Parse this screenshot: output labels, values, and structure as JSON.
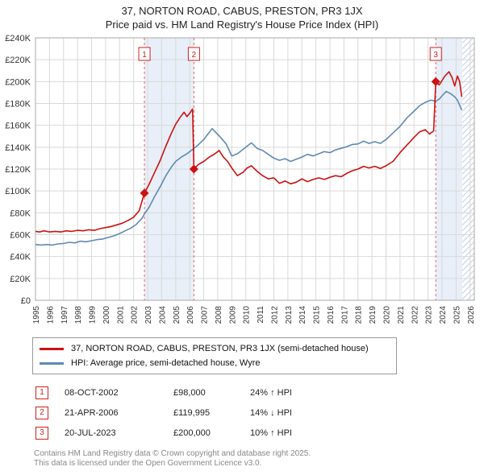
{
  "page": {
    "title": "37, NORTON ROAD, CABUS, PRESTON, PR3 1JX",
    "subtitle": "Price paid vs. HM Land Registry's House Price Index (HPI)"
  },
  "colors": {
    "property_line": "#cc1111",
    "hpi_line": "#5f8ab1",
    "sale_marker": "#cc1111",
    "dashed_line": "#e06666",
    "band_fill": "#e8eff8",
    "grid": "#d9d9d9",
    "frame": "#aaaaaa",
    "badge_red": "#cc2222"
  },
  "chart_data": {
    "type": "line",
    "title": "37, NORTON ROAD, CABUS, PRESTON, PR3 1JX — Price paid vs. HM Land Registry's House Price Index (HPI)",
    "xlabel": "",
    "ylabel": "",
    "x_axis": {
      "range": [
        1995,
        2026.3
      ],
      "ticks": [
        1995,
        1996,
        1997,
        1998,
        1999,
        2000,
        2001,
        2002,
        2003,
        2004,
        2005,
        2006,
        2007,
        2008,
        2009,
        2010,
        2011,
        2012,
        2013,
        2014,
        2015,
        2016,
        2017,
        2018,
        2019,
        2020,
        2021,
        2022,
        2023,
        2024,
        2025,
        2026
      ]
    },
    "y_axis": {
      "range": [
        0,
        240000
      ],
      "tick_step": 20000,
      "tick_labels": [
        "£0",
        "£20K",
        "£40K",
        "£60K",
        "£80K",
        "£100K",
        "£120K",
        "£140K",
        "£160K",
        "£180K",
        "£200K",
        "£220K",
        "£240K"
      ]
    },
    "bands": [
      [
        2002.77,
        2006.3
      ],
      [
        2023.55,
        2025.45
      ]
    ],
    "future_hatch": [
      2025.45,
      2026.3
    ],
    "sale_events": [
      {
        "label": "1",
        "x": 2002.77,
        "y": 98000
      },
      {
        "label": "2",
        "x": 2006.3,
        "y": 119995
      },
      {
        "label": "3",
        "x": 2023.55,
        "y": 200000
      }
    ],
    "series": [
      {
        "name": "37, NORTON ROAD, CABUS, PRESTON, PR3 1JX (semi-detached house)",
        "color": "#cc1111",
        "points": [
          [
            1995.0,
            63000
          ],
          [
            1995.3,
            62500
          ],
          [
            1995.6,
            63500
          ],
          [
            1996.0,
            62500
          ],
          [
            1996.4,
            63000
          ],
          [
            1996.8,
            62500
          ],
          [
            1997.2,
            63500
          ],
          [
            1997.6,
            63000
          ],
          [
            1998.0,
            64000
          ],
          [
            1998.4,
            63500
          ],
          [
            1998.8,
            64500
          ],
          [
            1999.2,
            64000
          ],
          [
            1999.6,
            65500
          ],
          [
            2000.0,
            66500
          ],
          [
            2000.4,
            67500
          ],
          [
            2000.8,
            69000
          ],
          [
            2001.2,
            70500
          ],
          [
            2001.6,
            73000
          ],
          [
            2002.0,
            76000
          ],
          [
            2002.4,
            82000
          ],
          [
            2002.77,
            98000
          ],
          [
            2003.1,
            106000
          ],
          [
            2003.5,
            117000
          ],
          [
            2003.9,
            128000
          ],
          [
            2004.3,
            141000
          ],
          [
            2004.7,
            153000
          ],
          [
            2005.0,
            161000
          ],
          [
            2005.3,
            167000
          ],
          [
            2005.6,
            172000
          ],
          [
            2005.8,
            168000
          ],
          [
            2006.0,
            171000
          ],
          [
            2006.2,
            175000
          ],
          [
            2006.3,
            119995
          ],
          [
            2006.6,
            124000
          ],
          [
            2007.0,
            127000
          ],
          [
            2007.4,
            131000
          ],
          [
            2007.8,
            134000
          ],
          [
            2008.1,
            137000
          ],
          [
            2008.4,
            131000
          ],
          [
            2008.7,
            127000
          ],
          [
            2009.0,
            121000
          ],
          [
            2009.4,
            114000
          ],
          [
            2009.8,
            117000
          ],
          [
            2010.1,
            121000
          ],
          [
            2010.4,
            123000
          ],
          [
            2010.8,
            118000
          ],
          [
            2011.2,
            114000
          ],
          [
            2011.6,
            111000
          ],
          [
            2012.0,
            112000
          ],
          [
            2012.4,
            107000
          ],
          [
            2012.8,
            109000
          ],
          [
            2013.2,
            106500
          ],
          [
            2013.6,
            108000
          ],
          [
            2014.0,
            111000
          ],
          [
            2014.4,
            108500
          ],
          [
            2014.8,
            110500
          ],
          [
            2015.2,
            112000
          ],
          [
            2015.6,
            110500
          ],
          [
            2016.0,
            112500
          ],
          [
            2016.4,
            114000
          ],
          [
            2016.8,
            113000
          ],
          [
            2017.2,
            116000
          ],
          [
            2017.6,
            118500
          ],
          [
            2018.0,
            120000
          ],
          [
            2018.4,
            122500
          ],
          [
            2018.8,
            121000
          ],
          [
            2019.2,
            122500
          ],
          [
            2019.6,
            120500
          ],
          [
            2020.0,
            123000
          ],
          [
            2020.5,
            127000
          ],
          [
            2021.0,
            135000
          ],
          [
            2021.5,
            142000
          ],
          [
            2022.0,
            149000
          ],
          [
            2022.4,
            154000
          ],
          [
            2022.8,
            156000
          ],
          [
            2023.1,
            152000
          ],
          [
            2023.4,
            155000
          ],
          [
            2023.55,
            200000
          ],
          [
            2023.8,
            197000
          ],
          [
            2024.0,
            201000
          ],
          [
            2024.2,
            205000
          ],
          [
            2024.5,
            209000
          ],
          [
            2024.7,
            204000
          ],
          [
            2024.9,
            196000
          ],
          [
            2025.1,
            205000
          ],
          [
            2025.25,
            200000
          ],
          [
            2025.4,
            186000
          ]
        ]
      },
      {
        "name": "HPI: Average price, semi-detached house, Wyre",
        "color": "#5f8ab1",
        "points": [
          [
            1995.0,
            51000
          ],
          [
            1995.4,
            50500
          ],
          [
            1995.8,
            51000
          ],
          [
            1996.2,
            50500
          ],
          [
            1996.6,
            51500
          ],
          [
            1997.0,
            52000
          ],
          [
            1997.4,
            53000
          ],
          [
            1997.8,
            52500
          ],
          [
            1998.2,
            54000
          ],
          [
            1998.6,
            53500
          ],
          [
            1999.0,
            54500
          ],
          [
            1999.4,
            55500
          ],
          [
            1999.8,
            56000
          ],
          [
            2000.2,
            57500
          ],
          [
            2000.6,
            59000
          ],
          [
            2001.0,
            61000
          ],
          [
            2001.4,
            63500
          ],
          [
            2001.8,
            66000
          ],
          [
            2002.2,
            69500
          ],
          [
            2002.6,
            75000
          ],
          [
            2002.77,
            79000
          ],
          [
            2003.1,
            85000
          ],
          [
            2003.5,
            95000
          ],
          [
            2003.9,
            104000
          ],
          [
            2004.3,
            114000
          ],
          [
            2004.7,
            122000
          ],
          [
            2005.0,
            127000
          ],
          [
            2005.4,
            131000
          ],
          [
            2005.8,
            134000
          ],
          [
            2006.2,
            138000
          ],
          [
            2006.6,
            142000
          ],
          [
            2007.0,
            147000
          ],
          [
            2007.3,
            152000
          ],
          [
            2007.6,
            157000
          ],
          [
            2007.9,
            153000
          ],
          [
            2008.2,
            149000
          ],
          [
            2008.6,
            143000
          ],
          [
            2009.0,
            132000
          ],
          [
            2009.4,
            134000
          ],
          [
            2009.8,
            138000
          ],
          [
            2010.1,
            141000
          ],
          [
            2010.4,
            144000
          ],
          [
            2010.8,
            139000
          ],
          [
            2011.2,
            137000
          ],
          [
            2011.6,
            133500
          ],
          [
            2012.0,
            130000
          ],
          [
            2012.4,
            128000
          ],
          [
            2012.8,
            129500
          ],
          [
            2013.2,
            127000
          ],
          [
            2013.6,
            129000
          ],
          [
            2014.0,
            131000
          ],
          [
            2014.4,
            133500
          ],
          [
            2014.8,
            132000
          ],
          [
            2015.2,
            134000
          ],
          [
            2015.6,
            136000
          ],
          [
            2016.0,
            135000
          ],
          [
            2016.4,
            137500
          ],
          [
            2016.8,
            139000
          ],
          [
            2017.2,
            140500
          ],
          [
            2017.6,
            142500
          ],
          [
            2018.0,
            143000
          ],
          [
            2018.4,
            145500
          ],
          [
            2018.8,
            143500
          ],
          [
            2019.2,
            145000
          ],
          [
            2019.6,
            143500
          ],
          [
            2020.0,
            147000
          ],
          [
            2020.5,
            153000
          ],
          [
            2021.0,
            159000
          ],
          [
            2021.5,
            167000
          ],
          [
            2022.0,
            173000
          ],
          [
            2022.4,
            178000
          ],
          [
            2022.8,
            181000
          ],
          [
            2023.2,
            183000
          ],
          [
            2023.55,
            182000
          ],
          [
            2023.8,
            184000
          ],
          [
            2024.0,
            187000
          ],
          [
            2024.3,
            191000
          ],
          [
            2024.6,
            189000
          ],
          [
            2024.9,
            186000
          ],
          [
            2025.1,
            183000
          ],
          [
            2025.4,
            174000
          ]
        ]
      }
    ]
  },
  "legend": {
    "items": [
      {
        "label": "37, NORTON ROAD, CABUS, PRESTON, PR3 1JX (semi-detached house)",
        "color": "#cc1111"
      },
      {
        "label": "HPI: Average price, semi-detached house, Wyre",
        "color": "#5f8ab1"
      }
    ]
  },
  "sales_table": {
    "rows": [
      {
        "num": "1",
        "date": "08-OCT-2002",
        "price": "£98,000",
        "hpi_delta": "24% ↑ HPI"
      },
      {
        "num": "2",
        "date": "21-APR-2006",
        "price": "£119,995",
        "hpi_delta": "14% ↓ HPI"
      },
      {
        "num": "3",
        "date": "20-JUL-2023",
        "price": "£200,000",
        "hpi_delta": "10% ↑ HPI"
      }
    ]
  },
  "footer": {
    "line1": "Contains HM Land Registry data © Crown copyright and database right 2025.",
    "line2": "This data is licensed under the Open Government Licence v3.0."
  }
}
